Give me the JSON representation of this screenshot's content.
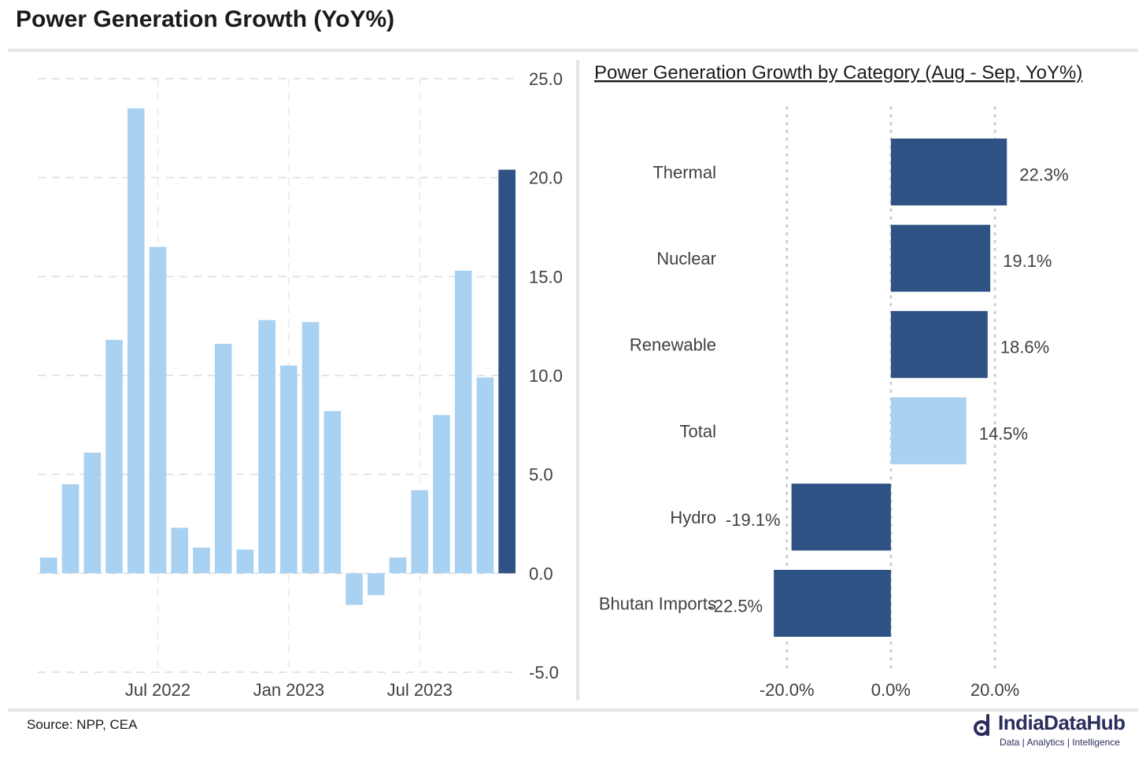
{
  "header": {
    "title": "Power Generation Growth (YoY%)"
  },
  "footer": {
    "source": "Source: NPP, CEA",
    "brand_name": "IndiaDataHub",
    "brand_tagline": "Data | Analytics | Intelligence"
  },
  "colors": {
    "light_bar": "#a9d1f2",
    "dark_bar": "#2d5283",
    "grid": "#e4e4e4",
    "text": "#404040",
    "brand": "#2a2e5c"
  },
  "chart_data": [
    {
      "type": "bar",
      "title": "",
      "xlabel": "",
      "ylabel": "",
      "ylim": [
        -5,
        25
      ],
      "y_ticks": [
        -5,
        0,
        5,
        10,
        15,
        20,
        25
      ],
      "y_tick_labels": [
        "-5.0",
        "0.0",
        "5.0",
        "10.0",
        "15.0",
        "20.0",
        "25.0"
      ],
      "x_tick_labels": [
        "Jul 2022",
        "Jan 2023",
        "Jul 2023"
      ],
      "x_tick_positions": [
        5.5,
        11.5,
        17.5
      ],
      "values": [
        0.8,
        4.5,
        6.1,
        11.8,
        23.5,
        16.5,
        2.3,
        1.3,
        11.6,
        1.2,
        12.8,
        10.5,
        12.7,
        8.2,
        -1.6,
        -1.1,
        0.8,
        4.2,
        8.0,
        15.3,
        9.9,
        20.4
      ],
      "highlight_index": 21,
      "grid": true,
      "y_axis_side": "right"
    },
    {
      "type": "bar",
      "orientation": "horizontal",
      "title": "Power Generation Growth by Category (Aug - Sep, YoY%)",
      "categories": [
        "Thermal",
        "Nuclear",
        "Renewable",
        "Total",
        "Hydro",
        "Bhutan Imports"
      ],
      "values": [
        22.3,
        19.1,
        18.6,
        14.5,
        -19.1,
        -22.5
      ],
      "value_labels": [
        "22.3%",
        "19.1%",
        "18.6%",
        "14.5%",
        "-19.1%",
        "-22.5%"
      ],
      "highlight_category": "Total",
      "xlim": [
        -26,
        33
      ],
      "x_ticks": [
        -20,
        0,
        20
      ],
      "x_tick_labels": [
        "-20.0%",
        "0.0%",
        "20.0%"
      ],
      "grid": true
    }
  ]
}
